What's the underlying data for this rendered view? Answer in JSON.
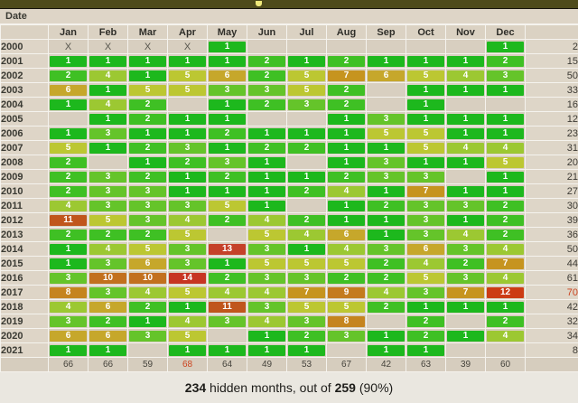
{
  "colors": {
    "ui": {
      "topbar": "#4e4b1b",
      "glyph": "#efe97a",
      "rowhead": "#ded5c7",
      "headbg": "#dbd2c3",
      "empty": "#d8cfc0",
      "totbg": "#ded6c8",
      "footbg": "#d6cdbe",
      "grid": "#f5f3ee",
      "red": "#cc4420"
    },
    "value_scale": {
      "1": "#1db81d",
      "2": "#3fc024",
      "3": "#65c42a",
      "4": "#9cc832",
      "5": "#bcc732",
      "6": "#c6a72b",
      "7": "#c6941f",
      "8": "#c5841f",
      "9": "#c47b1e",
      "10": "#c2701e",
      "11": "#c0561c",
      "12": "#cc3c14",
      "13": "#c54129",
      "14": "#c73422"
    }
  },
  "header": {
    "date_label": "Date"
  },
  "chart_data": {
    "type": "heatmap",
    "columns": [
      "Jan",
      "Feb",
      "Mar",
      "Apr",
      "May",
      "Jun",
      "Jul",
      "Aug",
      "Sep",
      "Oct",
      "Nov",
      "Dec"
    ],
    "rows": [
      "2000",
      "2001",
      "2002",
      "2003",
      "2004",
      "2005",
      "2006",
      "2007",
      "2008",
      "2009",
      "2010",
      "2011",
      "2012",
      "2013",
      "2014",
      "2015",
      "2016",
      "2017",
      "2018",
      "2019",
      "2020",
      "2021"
    ],
    "matrix": [
      [
        "X",
        "X",
        "X",
        "X",
        1,
        "",
        "",
        "",
        "",
        "",
        "",
        1
      ],
      [
        1,
        1,
        1,
        1,
        1,
        2,
        1,
        2,
        1,
        1,
        1,
        2
      ],
      [
        2,
        4,
        1,
        5,
        6,
        2,
        5,
        7,
        6,
        5,
        4,
        3
      ],
      [
        6,
        1,
        5,
        5,
        3,
        3,
        5,
        2,
        "",
        1,
        1,
        1
      ],
      [
        1,
        4,
        2,
        "",
        1,
        2,
        3,
        2,
        "",
        1,
        "",
        ""
      ],
      [
        "",
        1,
        2,
        1,
        1,
        "",
        "",
        1,
        3,
        1,
        1,
        1
      ],
      [
        1,
        3,
        1,
        1,
        2,
        1,
        1,
        1,
        5,
        5,
        1,
        1
      ],
      [
        5,
        1,
        2,
        3,
        1,
        2,
        2,
        1,
        1,
        5,
        4,
        4
      ],
      [
        2,
        "",
        1,
        2,
        3,
        1,
        "",
        1,
        3,
        1,
        1,
        5
      ],
      [
        2,
        3,
        2,
        1,
        2,
        1,
        1,
        2,
        3,
        3,
        "",
        1
      ],
      [
        2,
        3,
        3,
        1,
        1,
        1,
        2,
        4,
        1,
        7,
        1,
        1
      ],
      [
        4,
        3,
        3,
        3,
        5,
        1,
        "",
        1,
        2,
        3,
        3,
        2
      ],
      [
        11,
        5,
        3,
        4,
        2,
        4,
        2,
        1,
        1,
        3,
        1,
        2
      ],
      [
        2,
        2,
        2,
        5,
        "",
        5,
        4,
        6,
        1,
        3,
        4,
        2
      ],
      [
        1,
        4,
        5,
        3,
        13,
        3,
        1,
        4,
        3,
        6,
        3,
        4
      ],
      [
        1,
        3,
        6,
        3,
        1,
        5,
        5,
        5,
        2,
        4,
        2,
        7
      ],
      [
        3,
        10,
        10,
        14,
        2,
        3,
        3,
        2,
        2,
        5,
        3,
        4
      ],
      [
        8,
        3,
        4,
        5,
        4,
        4,
        7,
        9,
        4,
        3,
        7,
        12
      ],
      [
        4,
        6,
        2,
        1,
        11,
        3,
        5,
        5,
        2,
        1,
        1,
        1
      ],
      [
        3,
        2,
        1,
        4,
        3,
        4,
        3,
        8,
        "",
        2,
        "",
        2
      ],
      [
        6,
        6,
        3,
        5,
        "",
        1,
        2,
        3,
        1,
        2,
        1,
        4
      ],
      [
        1,
        1,
        "",
        1,
        1,
        1,
        1,
        "",
        1,
        1,
        "",
        ""
      ]
    ],
    "row_totals": [
      2,
      15,
      50,
      33,
      16,
      12,
      23,
      31,
      20,
      21,
      27,
      30,
      39,
      36,
      50,
      44,
      61,
      70,
      42,
      32,
      34,
      8
    ],
    "row_total_red_index": 17,
    "column_totals": [
      66,
      66,
      59,
      68,
      64,
      49,
      53,
      67,
      42,
      63,
      39,
      60
    ],
    "column_total_red_index": 3
  },
  "caption": {
    "hidden_count": "234",
    "mid_text": " hidden months, out of ",
    "total_count": "259",
    "suffix": " (90%)"
  }
}
